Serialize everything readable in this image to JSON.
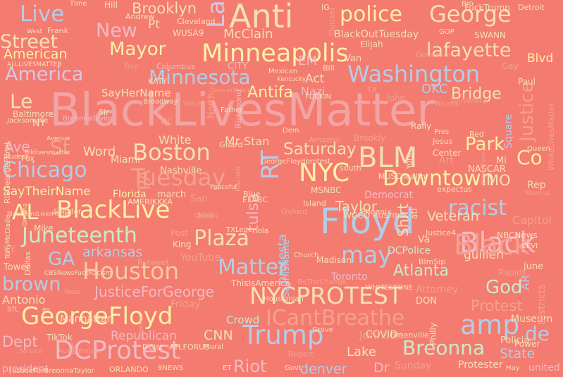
{
  "palette": {
    "background": "#f37b70",
    "pink": "#f4b9c3",
    "blue": "#b3cde6",
    "yellow": "#fbf1a6",
    "mint": "#c9ebc8",
    "peach": "#f8c9a3",
    "cream": "#f6dfb6",
    "lavender": "#d9c6e3",
    "rose": "#f2a4a4",
    "faint": "#f6a08f"
  },
  "words": [
    {
      "text": "BlackLivesMatter",
      "color": "rose"
    },
    {
      "text": "Anti",
      "color": "cream"
    },
    {
      "text": "La",
      "color": "lavender"
    },
    {
      "text": "Live",
      "color": "blue"
    },
    {
      "text": "police",
      "color": "yellow"
    },
    {
      "text": "George",
      "color": "cream"
    },
    {
      "text": "Minneapolis",
      "color": "yellow"
    },
    {
      "text": "Washington",
      "color": "blue"
    },
    {
      "text": "Floyd",
      "color": "blue"
    },
    {
      "text": "Boston",
      "color": "cream"
    },
    {
      "text": "Chicago",
      "color": "blue"
    },
    {
      "text": "BLM",
      "color": "cream"
    },
    {
      "text": "NYC",
      "color": "yellow"
    },
    {
      "text": "Downtown",
      "color": "yellow"
    },
    {
      "text": "AL",
      "color": "yellow"
    },
    {
      "text": "BlackLive",
      "color": "yellow"
    },
    {
      "text": "Houston",
      "color": "peach"
    },
    {
      "text": "NYCPROTEST",
      "color": "cream"
    },
    {
      "text": "GeorgeFloyd",
      "color": "yellow"
    },
    {
      "text": "DCProtest",
      "color": "pink"
    },
    {
      "text": "Trump",
      "color": "blue"
    },
    {
      "text": "amp",
      "color": "blue"
    },
    {
      "text": "de",
      "color": "blue"
    },
    {
      "text": "Black",
      "color": "pink"
    },
    {
      "text": "Breonna",
      "color": "mint"
    },
    {
      "text": "Juneteenth",
      "color": "mint"
    },
    {
      "text": "America",
      "color": "lavender"
    },
    {
      "text": "Minnesota",
      "color": "blue"
    },
    {
      "text": "Tuesday",
      "color": "faint"
    },
    {
      "text": "Matter",
      "color": "blue"
    },
    {
      "text": "racist",
      "color": "blue"
    },
    {
      "text": "Plaza",
      "color": "cream"
    },
    {
      "text": "may",
      "color": "blue"
    },
    {
      "text": "brown",
      "color": "blue"
    },
    {
      "text": "ICantBreathe",
      "color": "faint"
    },
    {
      "text": "Street",
      "color": "cream"
    },
    {
      "text": "Mayor",
      "color": "yellow"
    },
    {
      "text": "New",
      "color": "pink"
    },
    {
      "text": "lafayette",
      "color": "cream"
    },
    {
      "text": "Brooklyn",
      "color": "cream"
    },
    {
      "text": "Antifa",
      "color": "yellow"
    },
    {
      "text": "Le",
      "color": "cream"
    },
    {
      "text": "St",
      "color": "faint"
    },
    {
      "text": "Park",
      "color": "yellow"
    },
    {
      "text": "Co",
      "color": "yellow"
    },
    {
      "text": "Justice",
      "color": "faint"
    },
    {
      "text": "Saturday",
      "color": "cream"
    },
    {
      "text": "Atlanta",
      "color": "mint"
    },
    {
      "text": "Bridge",
      "color": "cream"
    },
    {
      "text": "GA",
      "color": "blue"
    },
    {
      "text": "arkansas",
      "color": "blue"
    },
    {
      "text": "JusticeForGeorge",
      "color": "pink"
    },
    {
      "text": "Protest",
      "color": "faint"
    },
    {
      "text": "God",
      "color": "mint"
    },
    {
      "text": "Dept",
      "color": "pink"
    },
    {
      "text": "Riot",
      "color": "pink"
    },
    {
      "text": "denver",
      "color": "blue"
    },
    {
      "text": "State",
      "color": "blue"
    },
    {
      "text": "Lake",
      "color": "cream"
    },
    {
      "text": "Dr",
      "color": "pink"
    },
    {
      "text": "united",
      "color": "pink"
    },
    {
      "text": "Museum",
      "color": "cream"
    },
    {
      "text": "Taylor",
      "color": "cream"
    },
    {
      "text": "Word",
      "color": "cream"
    },
    {
      "text": "Ave",
      "color": "pink"
    },
    {
      "text": "McClain",
      "color": "cream"
    },
    {
      "text": "American",
      "color": "yellow"
    },
    {
      "text": "Blvd",
      "color": "yellow"
    },
    {
      "text": "SayTheirName",
      "color": "yellow"
    },
    {
      "text": "PA",
      "color": "faint"
    },
    {
      "text": "RT",
      "color": "blue"
    },
    {
      "text": "tulsa",
      "color": "pink"
    },
    {
      "text": "Shirt",
      "color": "cream"
    },
    {
      "text": "OKC",
      "color": "blue"
    },
    {
      "text": "Nazi",
      "color": "pink"
    },
    {
      "text": "Act",
      "color": "cream"
    },
    {
      "text": "CNN",
      "color": "cream"
    },
    {
      "text": "Crowd",
      "color": "mint"
    },
    {
      "text": "Johnson",
      "color": "faint"
    },
    {
      "text": "Republican",
      "color": "pink"
    },
    {
      "text": "Manhattan",
      "color": "cream"
    },
    {
      "text": "Antonio",
      "color": "cream"
    },
    {
      "text": "Toronto",
      "color": "pink"
    },
    {
      "text": "DCPolice",
      "color": "mint"
    },
    {
      "text": "Veteran",
      "color": "cream"
    },
    {
      "text": "Capitol",
      "color": "faint"
    },
    {
      "text": "guillen",
      "color": "cream"
    },
    {
      "text": "MO",
      "color": "cream"
    },
    {
      "text": "Rep",
      "color": "cream"
    },
    {
      "text": "SayHerName",
      "color": "cream"
    },
    {
      "text": "Stan",
      "color": "cream"
    },
    {
      "text": "Mr",
      "color": "cream"
    },
    {
      "text": "White",
      "color": "cream"
    },
    {
      "text": "Miami",
      "color": "cream"
    },
    {
      "text": "Nashville",
      "color": "cream"
    },
    {
      "text": "Florida",
      "color": "yellow"
    },
    {
      "text": "march",
      "color": "cream"
    },
    {
      "text": "Mike",
      "color": "cream"
    },
    {
      "text": "YouTube",
      "color": "faint"
    },
    {
      "text": "Post",
      "color": "faint"
    },
    {
      "text": "Friday",
      "color": "faint"
    },
    {
      "text": "protesta",
      "color": "blue"
    },
    {
      "text": "Va",
      "color": "cream"
    },
    {
      "text": "Black",
      "color": "faint"
    },
    {
      "text": "Protester",
      "color": "cream"
    },
    {
      "text": "Sunday",
      "color": "faint"
    },
    {
      "text": "DON",
      "color": "cream"
    },
    {
      "text": "COVID",
      "color": "cream"
    },
    {
      "text": "Policia",
      "color": "cream"
    },
    {
      "text": "Power",
      "color": "cream"
    },
    {
      "text": "Attorney",
      "color": "faint"
    },
    {
      "text": "NASCAR",
      "color": "cream"
    },
    {
      "text": "Queen",
      "color": "cream"
    },
    {
      "text": "Square",
      "color": "blue"
    },
    {
      "text": "Art",
      "color": "faint"
    },
    {
      "text": "Mi",
      "color": "cream"
    },
    {
      "text": "Democrat",
      "color": "pink"
    },
    {
      "text": "MSNBC",
      "color": "cream"
    },
    {
      "text": "Island",
      "color": "cream"
    },
    {
      "text": "Amazon",
      "color": "faint"
    },
    {
      "text": "Brookly",
      "color": "faint"
    },
    {
      "text": "Baltimore",
      "color": "cream"
    },
    {
      "text": "Columbus",
      "color": "pink"
    },
    {
      "text": "CITY",
      "color": "pink"
    },
    {
      "text": "Jacksonville",
      "color": "cream"
    },
    {
      "text": "Frank",
      "color": "cream"
    },
    {
      "text": "Andrew",
      "color": "cream"
    },
    {
      "text": "Cleveland",
      "color": "cream"
    },
    {
      "text": "Detroit",
      "color": "cream"
    },
    {
      "text": "FuckTrump",
      "color": "cream"
    },
    {
      "text": "BlackOutTuesday",
      "color": "cream"
    },
    {
      "text": "GOP",
      "color": "cream"
    },
    {
      "text": "SWANN",
      "color": "cream"
    },
    {
      "text": "Elijah",
      "color": "cream"
    },
    {
      "text": "Van",
      "color": "cream"
    },
    {
      "text": "Governor",
      "color": "faint"
    },
    {
      "text": "Gay",
      "color": "faint"
    },
    {
      "text": "Paul",
      "color": "cream"
    },
    {
      "text": "John",
      "color": "faint"
    },
    {
      "text": "Rally",
      "color": "cream"
    },
    {
      "text": "Pres",
      "color": "cream"
    },
    {
      "text": "Kentucky",
      "color": "cream"
    },
    {
      "text": "Mexican",
      "color": "cream"
    },
    {
      "text": "Bill",
      "color": "cream"
    },
    {
      "text": "EM",
      "color": "pink"
    },
    {
      "text": "TX",
      "color": "faint"
    },
    {
      "text": "Ricans",
      "color": "faint"
    },
    {
      "text": "Hill",
      "color": "cream"
    },
    {
      "text": "Time",
      "color": "cream"
    },
    {
      "text": "West",
      "color": "cream"
    },
    {
      "text": "Pt",
      "color": "cream"
    },
    {
      "text": "WUSA9",
      "color": "cream"
    },
    {
      "text": "KATY",
      "color": "cream"
    },
    {
      "text": "Buy",
      "color": "faint"
    },
    {
      "text": "IG",
      "color": "cream"
    },
    {
      "text": "Bro",
      "color": "cream"
    },
    {
      "text": "Donald",
      "color": "faint"
    },
    {
      "text": "ALLLIVESMATTER",
      "color": "cream"
    },
    {
      "text": "DenverPolice",
      "color": "faint"
    },
    {
      "text": "Broadway",
      "color": "cream"
    },
    {
      "text": "Voice",
      "color": "faint"
    },
    {
      "text": "Father",
      "color": "cream"
    },
    {
      "text": "Richmond",
      "color": "pink"
    },
    {
      "text": "North",
      "color": "faint"
    },
    {
      "text": "DC",
      "color": "faint"
    },
    {
      "text": "Dem",
      "color": "cream"
    },
    {
      "text": "Sir",
      "color": "cream"
    },
    {
      "text": "NY",
      "color": "cream"
    },
    {
      "text": "Avenue",
      "color": "cream"
    },
    {
      "text": "BreonnaTaylor",
      "color": "pink"
    },
    {
      "text": "Student",
      "color": "cream"
    },
    {
      "text": "Guard",
      "color": "cream"
    },
    {
      "text": "GeorgeFloydprotest",
      "color": "cream"
    },
    {
      "text": "south",
      "color": "cream"
    },
    {
      "text": "MUSChealth",
      "color": "cream"
    },
    {
      "text": "Center",
      "color": "cream"
    },
    {
      "text": "Jesus",
      "color": "cream"
    },
    {
      "text": "San",
      "color": "faint"
    },
    {
      "text": "Blue",
      "color": "cream"
    },
    {
      "text": "Racism",
      "color": "faint"
    },
    {
      "text": "ELABC",
      "color": "cream"
    },
    {
      "text": "Oxford",
      "color": "faint"
    },
    {
      "text": "Phoenix",
      "color": "cream"
    },
    {
      "text": "expectus",
      "color": "cream"
    },
    {
      "text": "Marcus",
      "color": "faint"
    },
    {
      "text": "WCCO",
      "color": "cream"
    },
    {
      "text": "AUSTIN",
      "color": "cream"
    },
    {
      "text": "Nini",
      "color": "faint"
    },
    {
      "text": "Senator",
      "color": "cream"
    },
    {
      "text": "TXLege",
      "color": "cream"
    },
    {
      "text": "nola",
      "color": "cream"
    },
    {
      "text": "Justice4",
      "color": "cream"
    },
    {
      "text": "NBCNews",
      "color": "cream"
    },
    {
      "text": "King",
      "color": "cream"
    },
    {
      "text": "KY",
      "color": "faint"
    },
    {
      "text": "Tower",
      "color": "cream"
    },
    {
      "text": "Dallas",
      "color": "cream"
    },
    {
      "text": "Retweet",
      "color": "faint"
    },
    {
      "text": "Madison",
      "color": "cream"
    },
    {
      "text": "Church",
      "color": "cream"
    },
    {
      "text": "BlmSip",
      "color": "cream"
    },
    {
      "text": "june",
      "color": "cream"
    },
    {
      "text": "Rapids",
      "color": "faint"
    },
    {
      "text": "AR",
      "color": "blue"
    },
    {
      "text": "Districts",
      "color": "faint"
    },
    {
      "text": "CBSNewsFuckRacism",
      "color": "cream"
    },
    {
      "text": "ThisIsAmerica",
      "color": "cream"
    },
    {
      "text": "BeTheChange",
      "color": "faint"
    },
    {
      "text": "WHITESTONE",
      "color": "cream"
    },
    {
      "text": "STL",
      "color": "cream"
    },
    {
      "text": "en",
      "color": "cream"
    },
    {
      "text": "Texas",
      "color": "faint"
    },
    {
      "text": "Houstonian",
      "color": "cream"
    },
    {
      "text": "Grove",
      "color": "cream"
    },
    {
      "text": "Greenville",
      "color": "cream"
    },
    {
      "text": "Philly",
      "color": "cream"
    },
    {
      "text": "TikTok",
      "color": "cream"
    },
    {
      "text": "Inc",
      "color": "faint"
    },
    {
      "text": "AustinProtest",
      "color": "faint"
    },
    {
      "text": "DCist",
      "color": "cream"
    },
    {
      "text": "ATLFORUS",
      "color": "cream"
    },
    {
      "text": "Mural",
      "color": "cream"
    },
    {
      "text": "Robert",
      "color": "faint"
    },
    {
      "text": "president",
      "color": "pink"
    },
    {
      "text": "JusticeForBreonnaTaylor",
      "color": "cream"
    },
    {
      "text": "ORLANDO",
      "color": "cream"
    },
    {
      "text": "9NEWS",
      "color": "cream"
    },
    {
      "text": "ET",
      "color": "cream"
    },
    {
      "text": "Govt",
      "color": "cream"
    },
    {
      "text": "Hay",
      "color": "cream"
    },
    {
      "text": "RIPGeorgeFloyd",
      "color": "cream"
    },
    {
      "text": "Fox",
      "color": "cream"
    },
    {
      "text": "Biklivesmatter",
      "color": "cream"
    },
    {
      "text": "TonyMcDade",
      "color": "cream"
    },
    {
      "text": "Omaha",
      "color": "cream"
    },
    {
      "text": "BlackTransLivesMatter",
      "color": "cream"
    },
    {
      "text": "AMERIKKKA",
      "color": "cream"
    },
    {
      "text": "SayHisName",
      "color": "blue"
    },
    {
      "text": "WhiteLivesMatter",
      "color": "faint"
    },
    {
      "text": "University",
      "color": "faint"
    },
    {
      "text": "FloydProtest",
      "color": "faint"
    },
    {
      "text": "Red",
      "color": "cream"
    },
    {
      "text": "Bowser",
      "color": "faint"
    },
    {
      "text": "Service",
      "color": "faint"
    },
    {
      "text": "FUCKIN",
      "color": "cream"
    },
    {
      "text": "York",
      "color": "cream"
    },
    {
      "text": "atl",
      "color": "cream"
    },
    {
      "text": "Peaceful",
      "color": "cream"
    },
    {
      "text": "Orleans",
      "color": "faint"
    },
    {
      "text": "CEVI",
      "color": "cream"
    }
  ]
}
